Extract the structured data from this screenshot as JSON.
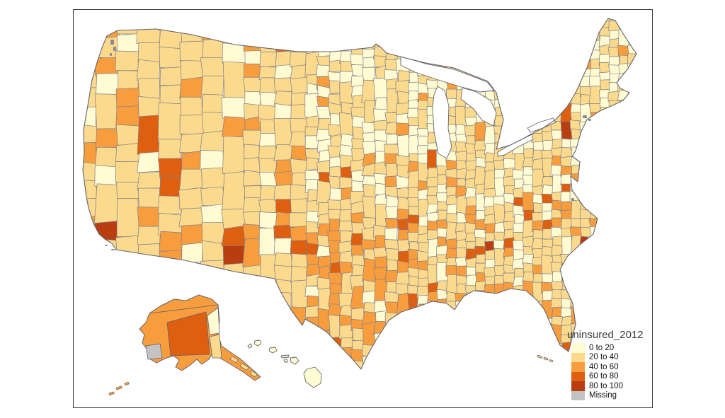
{
  "figure": {
    "background_color": "#ffffff",
    "frame_border_color": "#3a3a3a"
  },
  "legend": {
    "title": "uninsured_2012",
    "classes": [
      {
        "label": "0 to 20",
        "color": "#FFFBD3"
      },
      {
        "label": "20 to 40",
        "color": "#FBD98D"
      },
      {
        "label": "40 to 60",
        "color": "#F89D3E"
      },
      {
        "label": "60 to 80",
        "color": "#DF5F11"
      },
      {
        "label": "80 to 100",
        "color": "#B83D10"
      },
      {
        "label": "Missing",
        "color": "#C3C3C3"
      }
    ]
  },
  "map": {
    "type": "choropleth",
    "region": "United States counties",
    "insets": [
      "Alaska",
      "Hawaii"
    ],
    "county_border_color": "#7f7f88",
    "coast_border_color": "#63636b",
    "water_color": "#ffffff"
  }
}
